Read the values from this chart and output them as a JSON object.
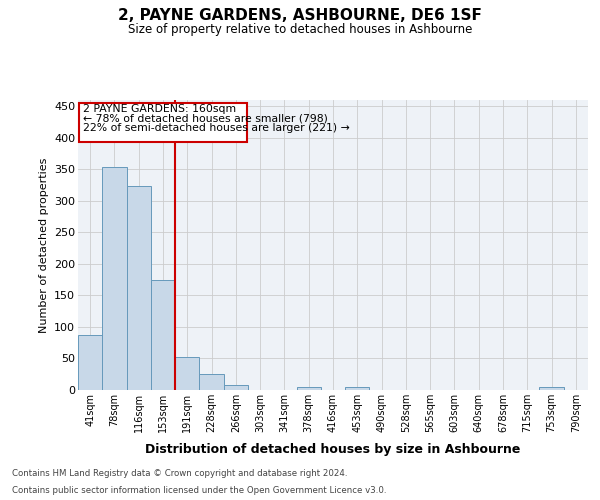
{
  "title": "2, PAYNE GARDENS, ASHBOURNE, DE6 1SF",
  "subtitle": "Size of property relative to detached houses in Ashbourne",
  "xlabel": "Distribution of detached houses by size in Ashbourne",
  "ylabel": "Number of detached properties",
  "footnote1": "Contains HM Land Registry data © Crown copyright and database right 2024.",
  "footnote2": "Contains public sector information licensed under the Open Government Licence v3.0.",
  "bin_labels": [
    "41sqm",
    "78sqm",
    "116sqm",
    "153sqm",
    "191sqm",
    "228sqm",
    "266sqm",
    "303sqm",
    "341sqm",
    "378sqm",
    "416sqm",
    "453sqm",
    "490sqm",
    "528sqm",
    "565sqm",
    "603sqm",
    "640sqm",
    "678sqm",
    "715sqm",
    "753sqm",
    "790sqm"
  ],
  "bar_values": [
    88,
    354,
    323,
    174,
    53,
    25,
    8,
    0,
    0,
    5,
    0,
    4,
    0,
    0,
    0,
    0,
    0,
    0,
    0,
    5,
    0
  ],
  "bar_color": "#c8d8e8",
  "bar_edge_color": "#6699bb",
  "grid_color": "#cccccc",
  "background_color": "#eef2f7",
  "annotation_box_color": "#ffffff",
  "annotation_box_edge": "#cc0000",
  "vline_color": "#cc0000",
  "vline_x": 3.5,
  "annotation_text1": "2 PAYNE GARDENS: 160sqm",
  "annotation_text2": "← 78% of detached houses are smaller (798)",
  "annotation_text3": "22% of semi-detached houses are larger (221) →",
  "ylim": [
    0,
    460
  ],
  "yticks": [
    0,
    50,
    100,
    150,
    200,
    250,
    300,
    350,
    400,
    450
  ]
}
